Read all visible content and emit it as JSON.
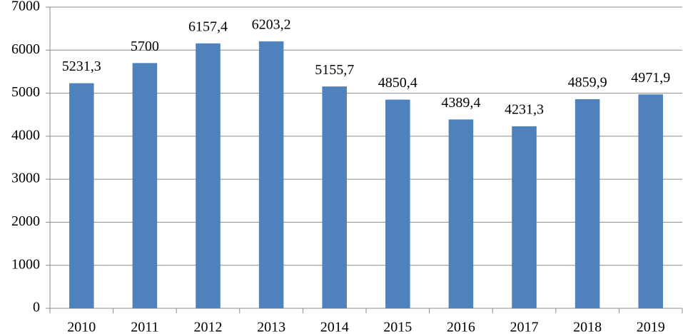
{
  "chart_data": {
    "type": "bar",
    "categories": [
      "2010",
      "2011",
      "2012",
      "2013",
      "2014",
      "2015",
      "2016",
      "2017",
      "2018",
      "2019"
    ],
    "values": [
      5231.3,
      5700,
      6157.4,
      6203.2,
      5155.7,
      4850.4,
      4389.4,
      4231.3,
      4859.9,
      4971.9
    ],
    "value_labels": [
      "5231,3",
      "5700",
      "6157,4",
      "6203,2",
      "5155,7",
      "4850,4",
      "4389,4",
      "4231,3",
      "4859,9",
      "4971,9"
    ],
    "color": "#4f81bd",
    "ylim": [
      0,
      7000
    ],
    "yticks": [
      0,
      1000,
      2000,
      3000,
      4000,
      5000,
      6000,
      7000
    ],
    "grid": true
  }
}
